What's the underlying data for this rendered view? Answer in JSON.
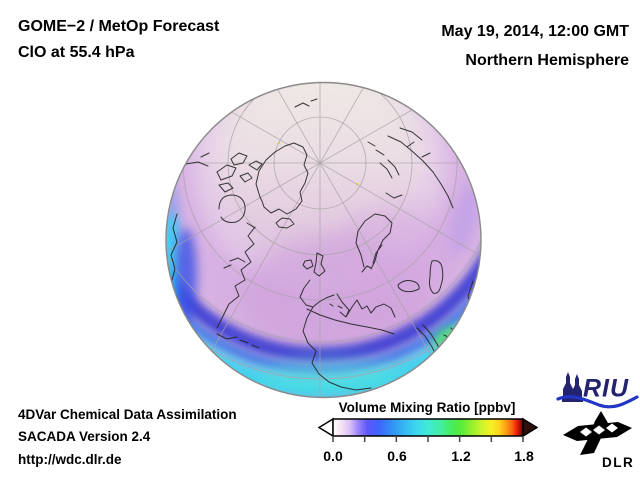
{
  "header": {
    "product_line1": "GOME−2 / MetOp Forecast",
    "product_line2": "ClO at 55.4 hPa",
    "datetime": "May 19, 2014, 12:00 GMT",
    "region": "Northern Hemisphere"
  },
  "footer": {
    "line1": "4DVar Chemical Data Assimilation",
    "line2": "SACADA Version 2.4",
    "line3": "http://wdc.dlr.de"
  },
  "colorbar": {
    "title": "Volume Mixing Ratio [ppbv]",
    "unit": "ppbv",
    "min": 0.0,
    "max": 1.8,
    "minor_tick_interval": 0.3,
    "tick_labels": [
      "0.0",
      "0.6",
      "1.2",
      "1.8"
    ],
    "gradient": [
      {
        "at": 0.0,
        "color": "#ffffff"
      },
      {
        "at": 0.04,
        "color": "#f6e6f4"
      },
      {
        "at": 0.09,
        "color": "#d9bff7"
      },
      {
        "at": 0.13,
        "color": "#9c8afa"
      },
      {
        "at": 0.18,
        "color": "#5f58fb"
      },
      {
        "at": 0.24,
        "color": "#3f63fa"
      },
      {
        "at": 0.3,
        "color": "#338af6"
      },
      {
        "at": 0.37,
        "color": "#35b4f2"
      },
      {
        "at": 0.44,
        "color": "#3cd8ee"
      },
      {
        "at": 0.5,
        "color": "#40ead8"
      },
      {
        "at": 0.56,
        "color": "#42eea6"
      },
      {
        "at": 0.62,
        "color": "#44ed62"
      },
      {
        "at": 0.67,
        "color": "#55ec3c"
      },
      {
        "at": 0.72,
        "color": "#8bef30"
      },
      {
        "at": 0.78,
        "color": "#c9f429"
      },
      {
        "at": 0.83,
        "color": "#f4f224"
      },
      {
        "at": 0.875,
        "color": "#fdd31e"
      },
      {
        "at": 0.91,
        "color": "#fba115"
      },
      {
        "at": 0.945,
        "color": "#f9600f"
      },
      {
        "at": 0.965,
        "color": "#ef230a"
      },
      {
        "at": 0.98,
        "color": "#c21106"
      },
      {
        "at": 0.993,
        "color": "#6e1209"
      },
      {
        "at": 1.0,
        "color": "#3a1410"
      }
    ],
    "left_arrow_color": "#ffffff",
    "right_arrow_color": "#2e0f0b"
  },
  "globe": {
    "projection": "orthographic, polar view over Europe / North Atlantic",
    "field": "ClO volume mixing ratio at 55.4 hPa",
    "approx_values_ppbv": {
      "high_arctic_pale_pink": 0.05,
      "mid_latitude_lavender_purple": 0.15,
      "dark_blue_band_around_40N": 0.35,
      "subtropical_cyan_rim": 0.6,
      "green_patch_near_arabia": 0.85
    }
  },
  "logos": {
    "riu": {
      "label": "RIU",
      "navy": "#232370",
      "wave_blue": "#2136c4"
    },
    "dlr": {
      "label": "DLR",
      "black": "#000000"
    }
  },
  "colors": {
    "background": "#ffffff",
    "text": "#000000",
    "graticule": "#a9a2a8",
    "coastline": "#222222"
  }
}
